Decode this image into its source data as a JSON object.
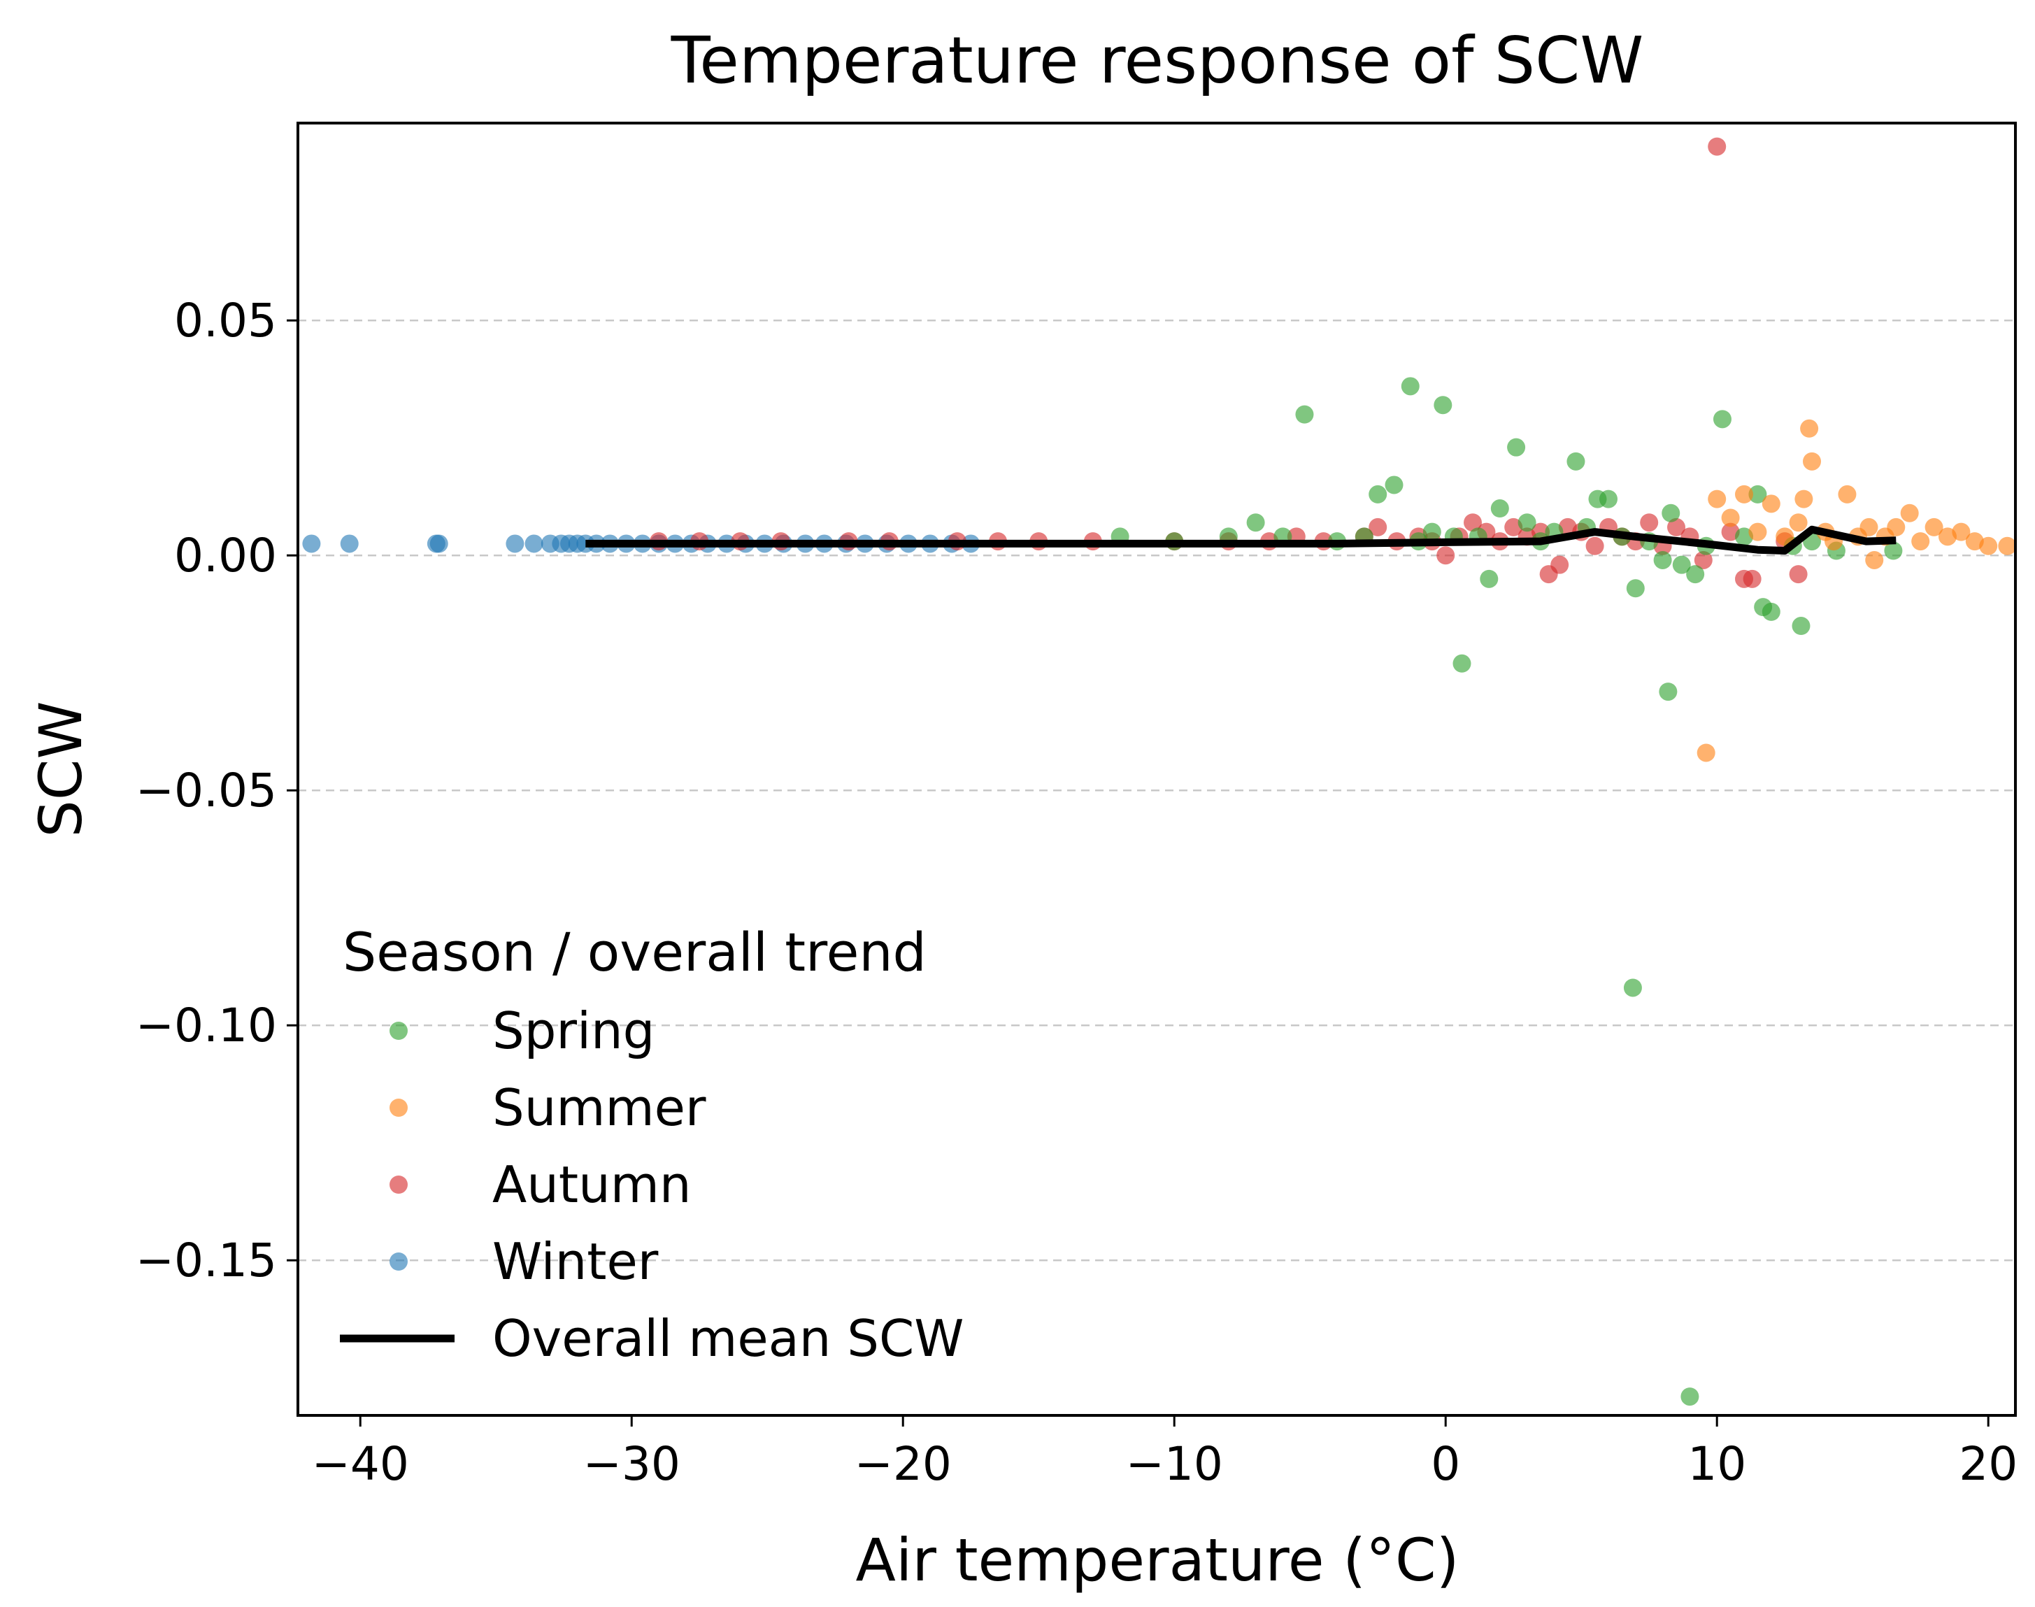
{
  "chart_data": {
    "type": "scatter",
    "title": "Temperature response of SCW",
    "xlabel": "Air temperature (°C)",
    "ylabel": "SCW",
    "xlim": [
      -42.3,
      21
    ],
    "ylim": [
      -0.183,
      0.092
    ],
    "xticks": [
      -40,
      -30,
      -20,
      -10,
      0,
      10,
      20
    ],
    "yticks": [
      0.05,
      0.0,
      -0.05,
      -0.1,
      -0.15
    ],
    "xtick_labels": [
      "−40",
      "−30",
      "−20",
      "−10",
      "0",
      "10",
      "20"
    ],
    "ytick_labels": [
      "0.05",
      "0.00",
      "−0.05",
      "−0.10",
      "−0.15"
    ],
    "grid": "horizontal dashed",
    "legend": {
      "title": "Season / overall trend",
      "placement": "lower-left",
      "entries": [
        "Spring",
        "Summer",
        "Autumn",
        "Winter",
        "Overall mean SCW"
      ]
    },
    "series": [
      {
        "name": "Winter",
        "kind": "scatter",
        "color": "#1f77b4",
        "points": [
          [
            -41.8,
            0.0025
          ],
          [
            -40.4,
            0.0025
          ],
          [
            -37.2,
            0.0025
          ],
          [
            -37.1,
            0.0025
          ],
          [
            -34.3,
            0.0025
          ],
          [
            -33.6,
            0.0025
          ],
          [
            -33.0,
            0.0025
          ],
          [
            -32.6,
            0.0025
          ],
          [
            -32.3,
            0.0025
          ],
          [
            -32.0,
            0.0025
          ],
          [
            -31.7,
            0.0025
          ],
          [
            -31.3,
            0.0025
          ],
          [
            -30.8,
            0.0025
          ],
          [
            -30.2,
            0.0025
          ],
          [
            -29.6,
            0.0025
          ],
          [
            -29.0,
            0.0025
          ],
          [
            -28.4,
            0.0025
          ],
          [
            -27.8,
            0.0025
          ],
          [
            -27.2,
            0.0025
          ],
          [
            -26.5,
            0.0025
          ],
          [
            -25.8,
            0.0025
          ],
          [
            -25.1,
            0.0025
          ],
          [
            -24.4,
            0.0025
          ],
          [
            -23.6,
            0.0025
          ],
          [
            -22.9,
            0.0025
          ],
          [
            -22.1,
            0.0025
          ],
          [
            -21.4,
            0.0025
          ],
          [
            -20.6,
            0.0025
          ],
          [
            -19.8,
            0.0025
          ],
          [
            -19.0,
            0.0025
          ],
          [
            -18.2,
            0.0025
          ],
          [
            -17.5,
            0.0025
          ]
        ]
      },
      {
        "name": "Autumn",
        "kind": "scatter",
        "color": "#d62728",
        "points": [
          [
            -29.0,
            0.003
          ],
          [
            -27.5,
            0.003
          ],
          [
            -26.0,
            0.003
          ],
          [
            -24.5,
            0.003
          ],
          [
            -22.0,
            0.003
          ],
          [
            -20.5,
            0.003
          ],
          [
            -18.0,
            0.003
          ],
          [
            -16.5,
            0.003
          ],
          [
            -15.0,
            0.003
          ],
          [
            -13.0,
            0.003
          ],
          [
            -10.0,
            0.003
          ],
          [
            -8.0,
            0.003
          ],
          [
            -6.5,
            0.003
          ],
          [
            -5.5,
            0.004
          ],
          [
            -4.5,
            0.003
          ],
          [
            -3.0,
            0.004
          ],
          [
            -2.5,
            0.006
          ],
          [
            -1.8,
            0.003
          ],
          [
            -1.0,
            0.004
          ],
          [
            -0.5,
            0.003
          ],
          [
            0.0,
            0.0
          ],
          [
            0.5,
            0.004
          ],
          [
            1.0,
            0.007
          ],
          [
            1.5,
            0.005
          ],
          [
            2.0,
            0.003
          ],
          [
            2.5,
            0.006
          ],
          [
            3.0,
            0.004
          ],
          [
            3.5,
            0.005
          ],
          [
            3.8,
            -0.004
          ],
          [
            4.2,
            -0.002
          ],
          [
            4.5,
            0.006
          ],
          [
            5.0,
            0.005
          ],
          [
            5.5,
            0.002
          ],
          [
            6.0,
            0.006
          ],
          [
            6.5,
            0.004
          ],
          [
            7.0,
            0.003
          ],
          [
            7.5,
            0.007
          ],
          [
            8.0,
            0.002
          ],
          [
            8.5,
            0.006
          ],
          [
            9.0,
            0.004
          ],
          [
            9.5,
            -0.001
          ],
          [
            10.0,
            0.087
          ],
          [
            10.5,
            0.005
          ],
          [
            11.0,
            -0.005
          ],
          [
            11.3,
            -0.005
          ],
          [
            12.5,
            0.003
          ],
          [
            13.0,
            -0.004
          ]
        ]
      },
      {
        "name": "Spring",
        "kind": "scatter",
        "color": "#2ca02c",
        "points": [
          [
            -12.0,
            0.004
          ],
          [
            -10.0,
            0.003
          ],
          [
            -8.0,
            0.004
          ],
          [
            -7.0,
            0.007
          ],
          [
            -6.0,
            0.004
          ],
          [
            -5.2,
            0.03
          ],
          [
            -4.0,
            0.003
          ],
          [
            -3.0,
            0.004
          ],
          [
            -2.5,
            0.013
          ],
          [
            -1.9,
            0.015
          ],
          [
            -1.3,
            0.036
          ],
          [
            -1.0,
            0.003
          ],
          [
            -0.5,
            0.005
          ],
          [
            -0.1,
            0.032
          ],
          [
            0.3,
            0.004
          ],
          [
            0.6,
            -0.023
          ],
          [
            1.2,
            0.004
          ],
          [
            1.6,
            -0.005
          ],
          [
            2.0,
            0.01
          ],
          [
            2.6,
            0.023
          ],
          [
            3.0,
            0.007
          ],
          [
            3.5,
            0.003
          ],
          [
            4.0,
            0.005
          ],
          [
            4.8,
            0.02
          ],
          [
            5.2,
            0.006
          ],
          [
            5.6,
            0.012
          ],
          [
            6.0,
            0.012
          ],
          [
            6.5,
            0.004
          ],
          [
            6.9,
            -0.092
          ],
          [
            7.0,
            -0.007
          ],
          [
            7.5,
            0.003
          ],
          [
            8.0,
            -0.001
          ],
          [
            8.2,
            -0.029
          ],
          [
            8.3,
            0.009
          ],
          [
            8.7,
            -0.002
          ],
          [
            9.0,
            -0.179
          ],
          [
            9.2,
            -0.004
          ],
          [
            9.6,
            0.002
          ],
          [
            10.2,
            0.029
          ],
          [
            11.0,
            0.004
          ],
          [
            11.5,
            0.013
          ],
          [
            11.7,
            -0.011
          ],
          [
            12.0,
            -0.012
          ],
          [
            12.8,
            0.002
          ],
          [
            13.1,
            -0.015
          ],
          [
            13.5,
            0.003
          ],
          [
            14.4,
            0.001
          ],
          [
            16.5,
            0.001
          ]
        ]
      },
      {
        "name": "Summer",
        "kind": "scatter",
        "color": "#ff7f0e",
        "points": [
          [
            9.6,
            -0.042
          ],
          [
            10.0,
            0.012
          ],
          [
            10.5,
            0.008
          ],
          [
            11.0,
            0.013
          ],
          [
            11.5,
            0.005
          ],
          [
            12.0,
            0.011
          ],
          [
            12.5,
            0.004
          ],
          [
            13.0,
            0.007
          ],
          [
            13.2,
            0.012
          ],
          [
            13.4,
            0.027
          ],
          [
            13.5,
            0.02
          ],
          [
            14.0,
            0.005
          ],
          [
            14.3,
            0.003
          ],
          [
            14.8,
            0.013
          ],
          [
            15.2,
            0.004
          ],
          [
            15.6,
            0.006
          ],
          [
            15.8,
            -0.001
          ],
          [
            16.2,
            0.004
          ],
          [
            16.6,
            0.006
          ],
          [
            17.1,
            0.009
          ],
          [
            17.5,
            0.003
          ],
          [
            18.0,
            0.006
          ],
          [
            18.5,
            0.004
          ],
          [
            19.0,
            0.005
          ],
          [
            19.5,
            0.003
          ],
          [
            20.0,
            0.002
          ],
          [
            20.7,
            0.002
          ]
        ]
      },
      {
        "name": "Overall mean SCW",
        "kind": "line",
        "color": "#000000",
        "points": [
          [
            -31.7,
            0.0025
          ],
          [
            -20.0,
            0.0025
          ],
          [
            -10.0,
            0.0025
          ],
          [
            -4.0,
            0.0025
          ],
          [
            0.0,
            0.0028
          ],
          [
            3.5,
            0.003
          ],
          [
            5.5,
            0.005
          ],
          [
            7.0,
            0.004
          ],
          [
            9.5,
            0.0025
          ],
          [
            11.5,
            0.0012
          ],
          [
            12.5,
            0.001
          ],
          [
            13.5,
            0.0055
          ],
          [
            15.5,
            0.003
          ],
          [
            16.6,
            0.0032
          ]
        ]
      }
    ]
  }
}
